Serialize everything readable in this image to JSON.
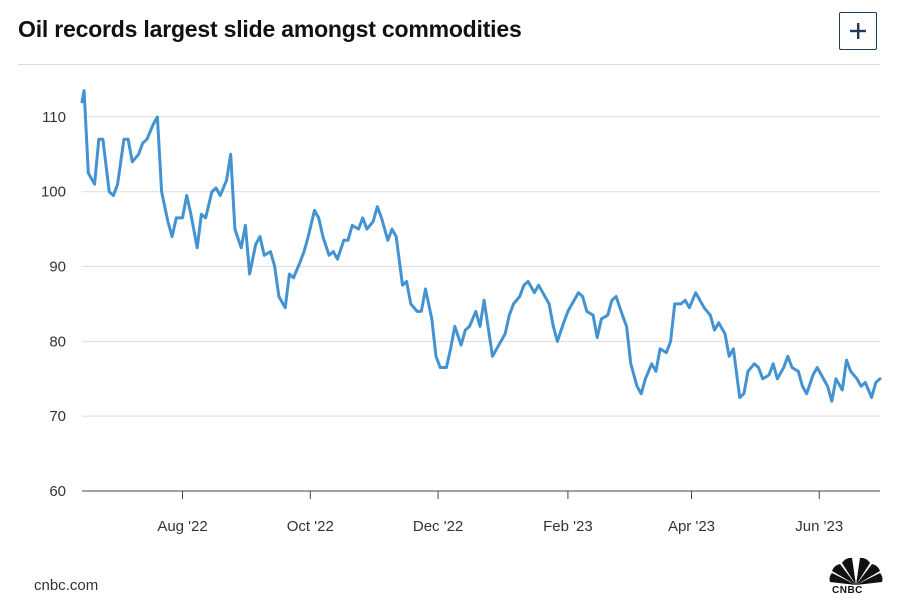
{
  "header": {
    "title": "Oil records largest slide amongst commodities",
    "expand_label": "+"
  },
  "footer": {
    "source": "cnbc.com",
    "logo_text": "CNBC"
  },
  "colors": {
    "line": "#4393d3",
    "grid": "#dcdcdc",
    "axis": "#444444",
    "button_border": "#1f3b57"
  },
  "icons": {
    "expand": "plus-icon",
    "logo": "peacock-logo-icon"
  },
  "chart_data": {
    "type": "line",
    "title": "Oil records largest slide amongst commodities",
    "xlabel": "",
    "ylabel": "",
    "ylim": [
      60,
      116
    ],
    "yticks": [
      60,
      70,
      80,
      90,
      100,
      110
    ],
    "xlim": [
      "2022-06-14",
      "2023-06-30"
    ],
    "xticks": [
      {
        "label": "Aug '22",
        "date": "2022-08-01"
      },
      {
        "label": "Oct '22",
        "date": "2022-10-01"
      },
      {
        "label": "Dec '22",
        "date": "2022-12-01"
      },
      {
        "label": "Feb '23",
        "date": "2023-02-01"
      },
      {
        "label": "Apr '23",
        "date": "2023-04-01"
      },
      {
        "label": "Jun '23",
        "date": "2023-06-01"
      }
    ],
    "grid": true,
    "series": [
      {
        "x": [
          "2022-06-14",
          "2022-06-15",
          "2022-06-17",
          "2022-06-20",
          "2022-06-22",
          "2022-06-24",
          "2022-06-27",
          "2022-06-29",
          "2022-07-01",
          "2022-07-04",
          "2022-07-06",
          "2022-07-08",
          "2022-07-11",
          "2022-07-13",
          "2022-07-15",
          "2022-07-18",
          "2022-07-20",
          "2022-07-22",
          "2022-07-25",
          "2022-07-27",
          "2022-07-29",
          "2022-08-01",
          "2022-08-03",
          "2022-08-05",
          "2022-08-08",
          "2022-08-10",
          "2022-08-12",
          "2022-08-15",
          "2022-08-17",
          "2022-08-19",
          "2022-08-22",
          "2022-08-24",
          "2022-08-26",
          "2022-08-29",
          "2022-08-31",
          "2022-09-02",
          "2022-09-05",
          "2022-09-07",
          "2022-09-09",
          "2022-09-12",
          "2022-09-14",
          "2022-09-16",
          "2022-09-19",
          "2022-09-21",
          "2022-09-23",
          "2022-09-26",
          "2022-09-28",
          "2022-09-30",
          "2022-10-03",
          "2022-10-05",
          "2022-10-07",
          "2022-10-10",
          "2022-10-12",
          "2022-10-14",
          "2022-10-17",
          "2022-10-19",
          "2022-10-21",
          "2022-10-24",
          "2022-10-26",
          "2022-10-28",
          "2022-10-31",
          "2022-11-02",
          "2022-11-04",
          "2022-11-07",
          "2022-11-09",
          "2022-11-11",
          "2022-11-14",
          "2022-11-16",
          "2022-11-18",
          "2022-11-21",
          "2022-11-23",
          "2022-11-25",
          "2022-11-28",
          "2022-11-30",
          "2022-12-02",
          "2022-12-05",
          "2022-12-07",
          "2022-12-09",
          "2022-12-12",
          "2022-12-14",
          "2022-12-16",
          "2022-12-19",
          "2022-12-21",
          "2022-12-23",
          "2022-12-27",
          "2022-12-29",
          "2023-01-02",
          "2023-01-04",
          "2023-01-06",
          "2023-01-09",
          "2023-01-11",
          "2023-01-13",
          "2023-01-16",
          "2023-01-18",
          "2023-01-20",
          "2023-01-23",
          "2023-01-25",
          "2023-01-27",
          "2023-01-30",
          "2023-02-01",
          "2023-02-03",
          "2023-02-06",
          "2023-02-08",
          "2023-02-10",
          "2023-02-13",
          "2023-02-15",
          "2023-02-17",
          "2023-02-20",
          "2023-02-22",
          "2023-02-24",
          "2023-02-27",
          "2023-03-01",
          "2023-03-03",
          "2023-03-06",
          "2023-03-08",
          "2023-03-10",
          "2023-03-13",
          "2023-03-15",
          "2023-03-17",
          "2023-03-20",
          "2023-03-22",
          "2023-03-24",
          "2023-03-27",
          "2023-03-29",
          "2023-03-31",
          "2023-04-03",
          "2023-04-05",
          "2023-04-07",
          "2023-04-10",
          "2023-04-12",
          "2023-04-14",
          "2023-04-17",
          "2023-04-19",
          "2023-04-21",
          "2023-04-24",
          "2023-04-26",
          "2023-04-28",
          "2023-05-01",
          "2023-05-03",
          "2023-05-05",
          "2023-05-08",
          "2023-05-10",
          "2023-05-12",
          "2023-05-15",
          "2023-05-17",
          "2023-05-19",
          "2023-05-22",
          "2023-05-24",
          "2023-05-26",
          "2023-05-29",
          "2023-05-31",
          "2023-06-02",
          "2023-06-05",
          "2023-06-07",
          "2023-06-09",
          "2023-06-12",
          "2023-06-14",
          "2023-06-16",
          "2023-06-19",
          "2023-06-21",
          "2023-06-23",
          "2023-06-26",
          "2023-06-28",
          "2023-06-30"
        ],
        "y": [
          112,
          113.5,
          102.5,
          101,
          107,
          107,
          100,
          99.5,
          101,
          107,
          107,
          104,
          105,
          106.5,
          107,
          109,
          110,
          100,
          96,
          94,
          96.5,
          96.5,
          99.5,
          97,
          92.5,
          97,
          96.5,
          100,
          100.5,
          99.5,
          101.5,
          105,
          95,
          92.5,
          95.5,
          89,
          93,
          94,
          91.5,
          92,
          90,
          86,
          84.5,
          89,
          88.5,
          90.5,
          92,
          94,
          97.5,
          96.5,
          94,
          91.5,
          92,
          91,
          93.5,
          93.5,
          95.5,
          95,
          96.5,
          95,
          96,
          98,
          96.5,
          93.5,
          95,
          94,
          87.5,
          88,
          85,
          84,
          84,
          87,
          83,
          78,
          76.5,
          76.5,
          79,
          82,
          79.5,
          81.5,
          82,
          84,
          82,
          85.5,
          78,
          79,
          81,
          83.5,
          85,
          86,
          87.5,
          88,
          86.5,
          87.5,
          86.5,
          85,
          82,
          80,
          82.5,
          84,
          85,
          86.5,
          86,
          84,
          83.5,
          80.5,
          83,
          83.5,
          85.5,
          86,
          83.5,
          82,
          77,
          74,
          73,
          75,
          77,
          76,
          79,
          78.5,
          80,
          85,
          85,
          85.5,
          84.5,
          86.5,
          85.5,
          84.5,
          83.5,
          81.5,
          82.5,
          81,
          78,
          79,
          72.5,
          73,
          76,
          77,
          76.5,
          75,
          75.5,
          77,
          75,
          76.5,
          78,
          76.5,
          76,
          74,
          73,
          75.5,
          76.5,
          75.5,
          74,
          72,
          75,
          73.5,
          77.5,
          76,
          75,
          74,
          74.5,
          72.5,
          74.5,
          75
        ]
      }
    ]
  }
}
